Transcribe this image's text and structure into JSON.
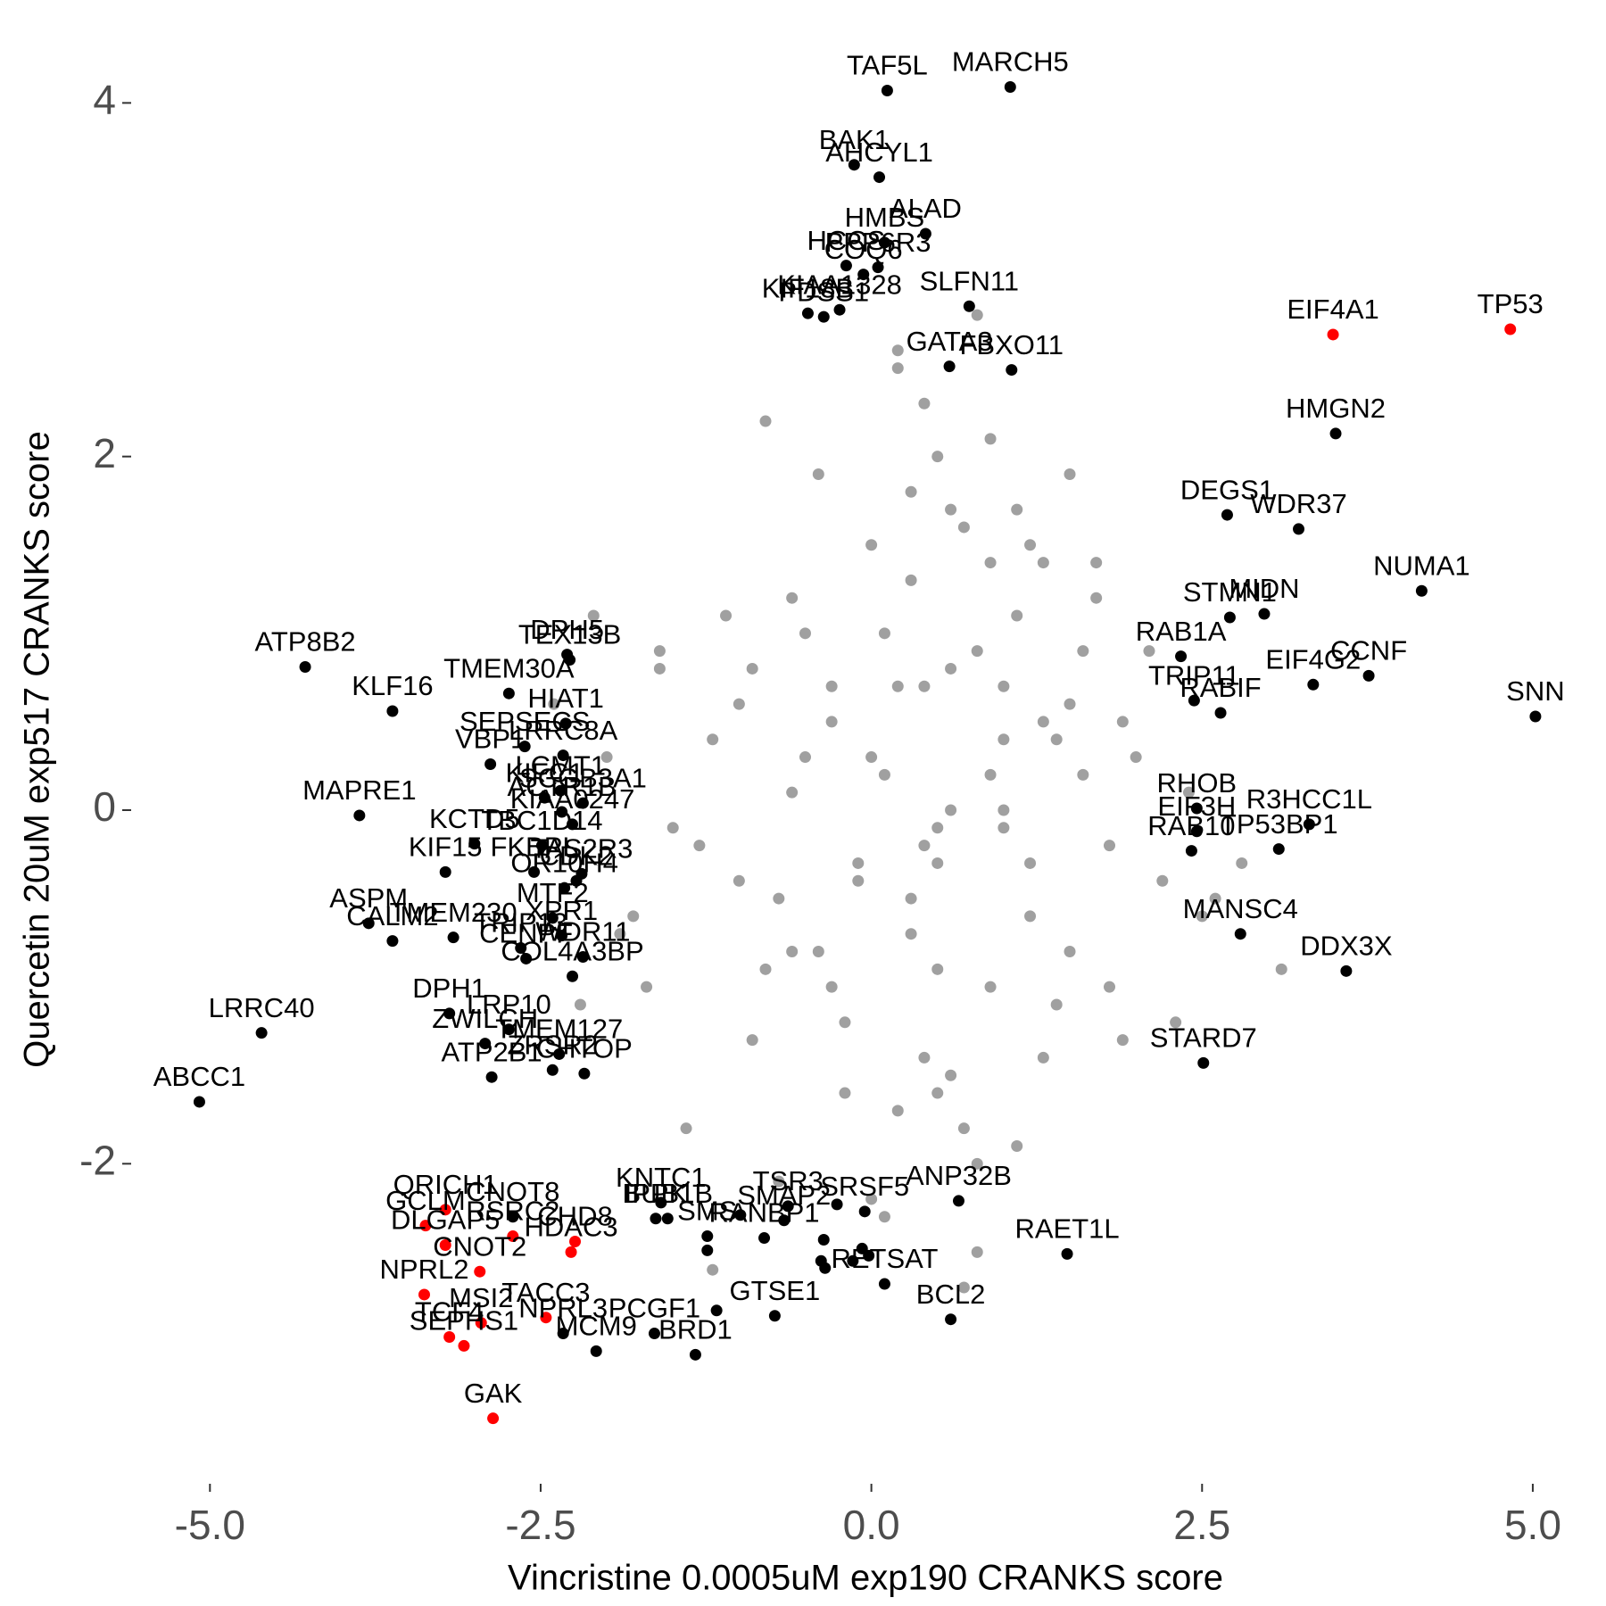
{
  "chart_data": {
    "type": "scatter",
    "xlabel": "Vincristine 0.0005uM exp190 CRANKS score",
    "ylabel": "Quercetin 20uM exp517 CRANKS score",
    "xlim": [
      -5.4,
      5.25
    ],
    "ylim": [
      -3.8,
      4.35
    ],
    "xticks": [
      {
        "value": -5,
        "label": "-5.0"
      },
      -2.5,
      {
        "value": 0,
        "label": "0.0"
      },
      2.5,
      {
        "value": 5,
        "label": "5.0"
      }
    ],
    "yticks": [
      -2,
      0,
      2,
      4
    ],
    "grid": false,
    "series": [
      {
        "color": "#a0a0a0",
        "x": [
          0.1,
          0.5,
          -0.3,
          0.8,
          1.2,
          -0.6,
          0.3,
          0.9,
          -0.1,
          1.5,
          -0.9,
          0.4,
          1.1,
          0.0,
          -0.4,
          0.7,
          1.8,
          -1.2,
          0.2,
          0.6,
          1.3,
          -0.7,
          0.5,
          1.0,
          -0.2,
          0.8,
          2.0,
          -1.5,
          0.3,
          1.4,
          -0.5,
          0.9,
          0.1,
          1.6,
          -0.8,
          0.4,
          1.2,
          -1.0,
          0.6,
          2.2,
          -1.8,
          0.0,
          0.7,
          1.9,
          -0.3,
          1.1,
          -1.3,
          0.5,
          2.4,
          -2.0,
          0.2,
          0.8,
          1.5,
          -0.6,
          1.0,
          -0.9,
          0.3,
          1.7,
          -1.6,
          0.9,
          -0.2,
          1.3,
          2.6,
          -2.2,
          0.4,
          1.0,
          -0.4,
          0.6,
          1.8,
          -1.1,
          0.1,
          1.4,
          -0.7,
          2.1,
          -1.4,
          0.7,
          0.2,
          1.2,
          -0.5,
          2.8,
          -2.4,
          0.5,
          1.6,
          -1.9,
          0.9,
          -0.1,
          1.1,
          0.3,
          -1.0,
          2.3,
          -0.8,
          0.6,
          1.9,
          -1.7,
          0.0,
          1.5,
          -1.6,
          3.1,
          0.4,
          -0.3,
          0.8,
          -1.2,
          1.3,
          2.5,
          0.2,
          -0.6,
          1.0,
          0.5,
          -2.1,
          1.7
        ],
        "values": [
          0.2,
          -0.3,
          0.5,
          0.9,
          -0.6,
          0.1,
          1.3,
          -1.0,
          -0.4,
          0.6,
          0.8,
          -1.4,
          1.1,
          0.3,
          -0.8,
          1.6,
          -0.2,
          0.4,
          -1.7,
          0.0,
          1.4,
          -0.5,
          2.0,
          0.7,
          -1.2,
          -2.0,
          0.3,
          -0.1,
          1.8,
          -1.1,
          1.0,
          0.2,
          -2.3,
          0.9,
          -0.9,
          2.3,
          -0.3,
          0.6,
          -1.5,
          -0.4,
          -0.6,
          1.5,
          -1.8,
          0.5,
          0.7,
          1.7,
          -0.2,
          -0.9,
          0.1,
          0.3,
          2.5,
          -2.5,
          -0.8,
          1.2,
          0.4,
          -1.3,
          -0.7,
          1.2,
          0.9,
          2.1,
          -1.6,
          -1.4,
          -0.5,
          -1.1,
          -0.2,
          -0.1,
          1.9,
          0.8,
          -1.0,
          1.1,
          1.0,
          0.4,
          -2.1,
          0.9,
          -1.8,
          -2.7,
          2.6,
          1.5,
          0.3,
          -0.3,
          0.6,
          -1.6,
          0.2,
          -0.7,
          1.4,
          -0.3,
          -1.9,
          -0.5,
          -0.4,
          -1.2,
          2.2,
          1.7,
          -1.3,
          -1.0,
          -2.2,
          1.9,
          0.8,
          -0.9,
          0.7,
          -1.0,
          2.8,
          -2.6,
          0.5,
          -0.6,
          0.7,
          -0.8,
          0.0,
          -0.1,
          1.1,
          1.4
        ]
      },
      {
        "color": "#000000",
        "labels": [
          "TAF5L",
          "MARCH5",
          "BAK1",
          "AHCYL1",
          "ALAD",
          "HMBS",
          "PPP6R3",
          "HCCS",
          "KIF18B",
          "PDSS1",
          "KIAA1328",
          "COQ6",
          "SLFN11",
          "FBXO11",
          "GATA3",
          "HMGN2",
          "DEGS1",
          "WDR37",
          "STMN1",
          "MIDN",
          "NUMA1",
          "RAB1A",
          "CCNF",
          "EIF4G2",
          "TRIP11",
          "RABIF",
          "SNN",
          "RHOB",
          "EIF3H",
          "RAB10",
          "R3HCC1L",
          "TP53BP1",
          "MANSC4",
          "DDX3X",
          "STARD7",
          "ANP32B",
          "RAET1L",
          "RETSAT",
          "BCL2",
          "SRSF5",
          "ATP8B2",
          "KIFC1",
          "KLF16",
          "TMEM30A",
          "DPH5",
          "TEX13B",
          "HIAT1",
          "LRRC8A",
          "SEPSECS",
          "VBP1",
          "MAPRE1",
          "LCMT1",
          "SCGB3A1",
          "KIAA0247",
          "ACTR1B",
          "KCTD5",
          "TBC1D14",
          "KIF15",
          "FKBPL",
          "TAS2R3",
          "CDK2",
          "OR10H4",
          "ASPM",
          "CALM2",
          "TMEM230",
          "MTF2",
          "XPR1",
          "TRIP13",
          "CENPF",
          "WDR11",
          "COL4A3BP",
          "LRRC40",
          "DPH1",
          "LRP10",
          "ZWILCH",
          "TMEM127",
          "ZRSR2",
          "CHTOP",
          "ATP2B1",
          "ABCC1",
          "CNOT8",
          "NPRL3",
          "MCM9",
          "PCGF1",
          "KNTC1",
          "IPPK",
          "BUB1B",
          "SMS",
          "TSR3",
          "SMAP2",
          "RANBP1",
          "GTSE1",
          "BRD1",
          null,
          null,
          null,
          null,
          null,
          null,
          null,
          null,
          null,
          null
        ],
        "x": [
          0.12,
          1.05,
          -0.13,
          0.06,
          0.41,
          0.1,
          0.05,
          -0.19,
          -0.48,
          -0.36,
          -0.24,
          -0.06,
          0.74,
          1.06,
          0.59,
          3.51,
          2.69,
          3.23,
          2.71,
          2.97,
          4.16,
          2.34,
          3.76,
          3.34,
          2.44,
          2.64,
          5.02,
          2.46,
          2.46,
          2.42,
          3.31,
          3.08,
          2.79,
          3.59,
          2.51,
          0.66,
          1.48,
          0.1,
          0.6,
          -0.05,
          -4.28,
          -2.47,
          -3.62,
          -2.74,
          -2.3,
          -2.28,
          -2.31,
          -2.33,
          -2.62,
          -2.88,
          -3.87,
          -2.35,
          -2.18,
          -2.26,
          -2.34,
          -3.0,
          -2.49,
          -3.22,
          -2.55,
          -2.19,
          -2.23,
          -2.32,
          -3.8,
          -3.62,
          -3.16,
          -2.41,
          -2.34,
          -2.65,
          -2.61,
          -2.18,
          -2.26,
          -4.61,
          -3.19,
          -2.74,
          -2.92,
          -2.36,
          -2.41,
          -2.17,
          -2.87,
          -5.08,
          -2.71,
          -2.33,
          -2.08,
          -1.64,
          -1.59,
          -1.63,
          -1.54,
          -1.24,
          -0.63,
          -0.66,
          -0.81,
          -0.73,
          -1.33,
          -0.99,
          -1.24,
          -0.36,
          -0.38,
          -0.35,
          -0.14,
          -0.07,
          -0.02,
          -1.17,
          -0.26
        ],
        "values": [
          4.07,
          4.09,
          3.65,
          3.58,
          3.26,
          3.21,
          3.07,
          3.08,
          2.81,
          2.79,
          2.83,
          3.03,
          2.85,
          2.49,
          2.51,
          2.13,
          1.67,
          1.59,
          1.09,
          1.11,
          1.24,
          0.87,
          0.76,
          0.71,
          0.62,
          0.55,
          0.53,
          0.01,
          -0.12,
          -0.23,
          -0.08,
          -0.22,
          -0.7,
          -0.91,
          -1.43,
          -2.21,
          -2.51,
          -2.68,
          -2.88,
          -2.27,
          0.81,
          0.07,
          0.56,
          0.66,
          0.88,
          0.85,
          0.49,
          0.31,
          0.36,
          0.26,
          -0.03,
          0.11,
          0.04,
          -0.08,
          -0.01,
          -0.19,
          -0.2,
          -0.35,
          -0.35,
          -0.36,
          -0.4,
          -0.44,
          -0.64,
          -0.74,
          -0.72,
          -0.61,
          -0.71,
          -0.78,
          -0.84,
          -0.83,
          -0.94,
          -1.26,
          -1.15,
          -1.24,
          -1.32,
          -1.38,
          -1.47,
          -1.49,
          -1.51,
          -1.65,
          -2.3,
          -2.96,
          -3.06,
          -2.96,
          -2.22,
          -2.31,
          -2.31,
          -2.41,
          -2.24,
          -2.32,
          -2.42,
          -2.86,
          -3.08,
          -2.29,
          -2.49,
          -2.43,
          -2.55,
          -2.59,
          -2.55,
          -2.48,
          -2.52,
          -2.83,
          -2.23
        ]
      },
      {
        "color": "#ff0000",
        "labels": [
          "EIF4A1",
          "TP53",
          "QRICH1",
          "GCLM",
          "RSRC2",
          "CHD8",
          "DLGAP5",
          "HDAC3",
          "CNOT2",
          "NPRL2",
          "TACC3",
          "MSI2",
          "TCF4",
          "SEPHS1",
          "GAK"
        ],
        "x": [
          3.49,
          4.83,
          -3.22,
          -3.37,
          -2.71,
          -2.24,
          -3.22,
          -2.27,
          -2.96,
          -3.38,
          -2.46,
          -2.95,
          -3.19,
          -3.08,
          -2.86
        ],
        "values": [
          2.69,
          2.72,
          -2.26,
          -2.35,
          -2.41,
          -2.44,
          -2.46,
          -2.5,
          -2.61,
          -2.74,
          -2.87,
          -2.9,
          -2.98,
          -3.03,
          -3.44
        ]
      }
    ]
  }
}
